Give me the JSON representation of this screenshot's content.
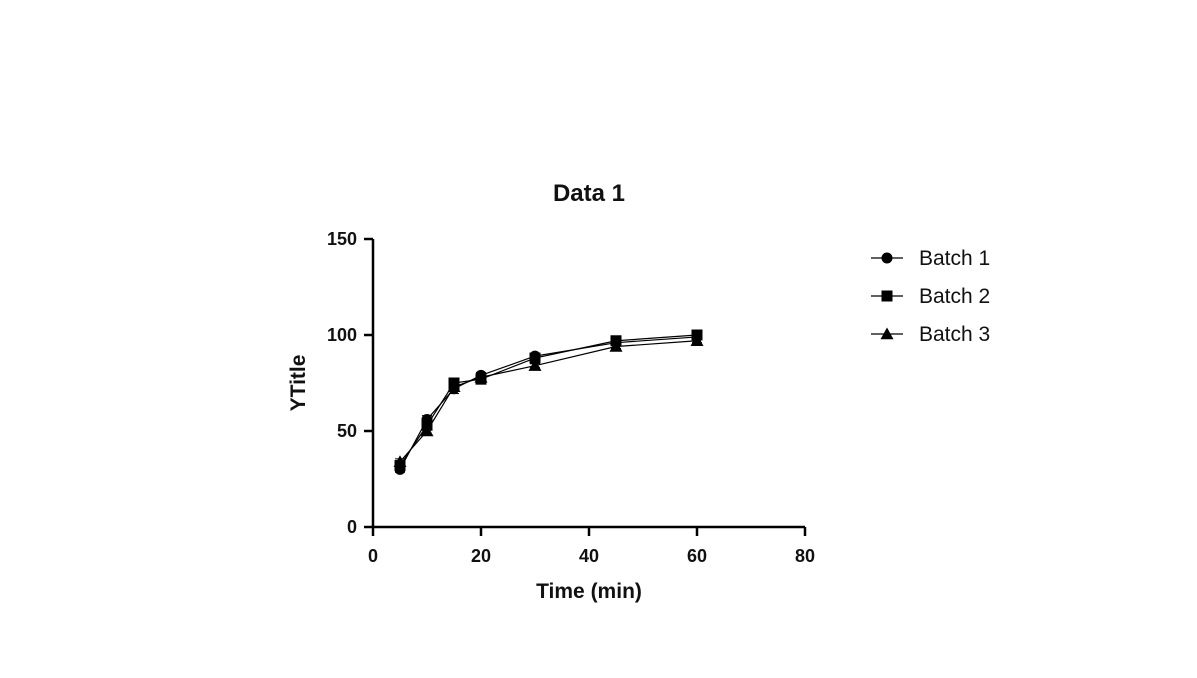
{
  "chart_data": {
    "type": "line",
    "title": "Data 1",
    "xlabel": "Time (min)",
    "ylabel": "YTitle",
    "xlim": [
      0,
      80
    ],
    "ylim": [
      0,
      150
    ],
    "xticks": [
      0,
      20,
      40,
      60,
      80
    ],
    "yticks": [
      0,
      50,
      100,
      150
    ],
    "grid": false,
    "legend_position": "right",
    "series": [
      {
        "name": "Batch 1",
        "marker": "circle",
        "x": [
          5,
          10,
          15,
          20,
          30,
          45,
          60
        ],
        "values": [
          30,
          56,
          72,
          79,
          89,
          96,
          99
        ],
        "err": [
          1.5,
          2,
          2.5,
          1.5,
          1,
          1,
          1
        ]
      },
      {
        "name": "Batch 2",
        "marker": "square",
        "x": [
          5,
          10,
          15,
          20,
          30,
          45,
          60
        ],
        "values": [
          32,
          53,
          75,
          77,
          88,
          97,
          100
        ],
        "err": [
          1.5,
          2,
          1.5,
          1.5,
          1,
          1,
          1
        ]
      },
      {
        "name": "Batch 3",
        "marker": "triangle",
        "x": [
          5,
          10,
          15,
          20,
          30,
          45,
          60
        ],
        "values": [
          34,
          50,
          73,
          78,
          84,
          94,
          97
        ],
        "err": [
          1.5,
          2,
          2,
          1.5,
          1,
          1,
          1
        ]
      }
    ]
  }
}
